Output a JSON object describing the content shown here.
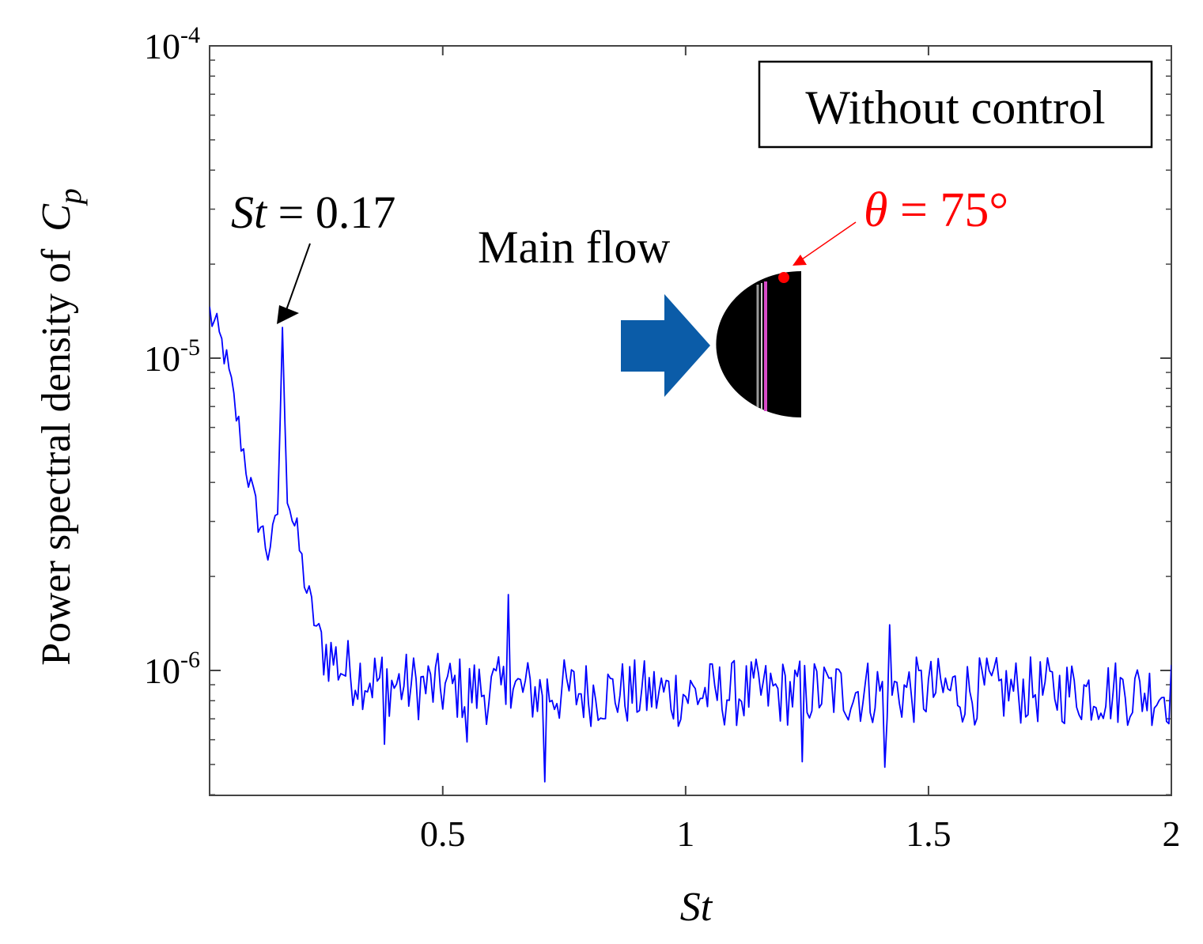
{
  "chart_data": {
    "type": "line",
    "title": "",
    "xlabel": "St",
    "ylabel_prefix": "Power spectral density of",
    "ylabel_symbol": "C",
    "ylabel_subscript": "p",
    "x_scale": "linear",
    "y_scale": "log",
    "xlim": [
      0.02,
      2.0
    ],
    "ylim_log10": [
      -6.4,
      -4.0
    ],
    "x_ticks": [
      {
        "value": 0.5,
        "label": "0.5"
      },
      {
        "value": 1.0,
        "label": "1"
      },
      {
        "value": 1.5,
        "label": "1.5"
      },
      {
        "value": 2.0,
        "label": "2"
      }
    ],
    "y_ticks": [
      {
        "value_log10": -4,
        "base": "10",
        "exponent": "-4"
      },
      {
        "value_log10": -5,
        "base": "10",
        "exponent": "-5"
      },
      {
        "value_log10": -6,
        "base": "10",
        "exponent": "-6"
      }
    ],
    "series": [
      {
        "name": "Without control",
        "color": "#0000ff",
        "x_step": 0.005,
        "key_points": [
          {
            "x": 0.02,
            "y": 1.4e-05
          },
          {
            "x": 0.05,
            "y": 1.05e-05
          },
          {
            "x": 0.08,
            "y": 6e-06
          },
          {
            "x": 0.11,
            "y": 3.5e-06
          },
          {
            "x": 0.14,
            "y": 2.4e-06
          },
          {
            "x": 0.16,
            "y": 3.2e-06
          },
          {
            "x": 0.17,
            "y": 1.2e-05
          },
          {
            "x": 0.18,
            "y": 3.6e-06
          },
          {
            "x": 0.2,
            "y": 2.7e-06
          },
          {
            "x": 0.22,
            "y": 1.8e-06
          },
          {
            "x": 0.25,
            "y": 1.2e-06
          },
          {
            "x": 0.3,
            "y": 1e-06
          },
          {
            "x": 0.4,
            "y": 9e-07
          },
          {
            "x": 0.6,
            "y": 8.6e-07
          },
          {
            "x": 0.8,
            "y": 8.5e-07
          },
          {
            "x": 1.0,
            "y": 8.4e-07
          },
          {
            "x": 1.4,
            "y": 8.6e-07
          },
          {
            "x": 1.8,
            "y": 8.6e-07
          },
          {
            "x": 2.0,
            "y": 8.5e-07
          }
        ],
        "spikes": [
          {
            "x": 0.635,
            "y": 1.75e-06
          },
          {
            "x": 0.71,
            "y": 4.4e-07
          },
          {
            "x": 0.38,
            "y": 5.8e-07
          },
          {
            "x": 0.55,
            "y": 5.9e-07
          },
          {
            "x": 1.24,
            "y": 5.1e-07
          },
          {
            "x": 1.41,
            "y": 4.9e-07
          },
          {
            "x": 1.42,
            "y": 1.4e-06
          }
        ]
      }
    ],
    "legend": {
      "label": "Without control",
      "position": "top-right"
    },
    "annotations": [
      {
        "symbol": "St",
        "text": " = 0.17",
        "points_to": {
          "x": 0.17,
          "y": 1.2e-05
        }
      },
      {
        "text": "Main flow"
      },
      {
        "symbol": "θ",
        "text": " = 75°",
        "color": "#ff0000"
      }
    ]
  },
  "colors": {
    "line": "#0000ff",
    "flow_arrow": "#0b5ca8",
    "marker": "#ff0000",
    "model": "#000000",
    "model_stripe": "#d84bc8"
  }
}
